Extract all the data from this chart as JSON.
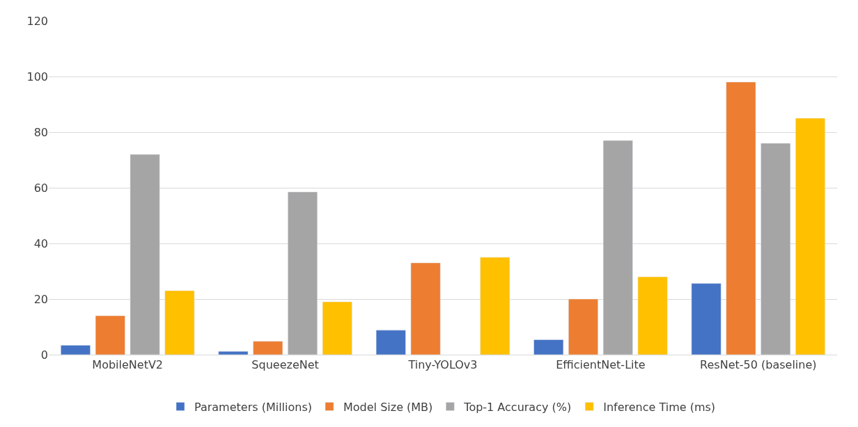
{
  "chart_data": {
    "type": "bar",
    "categories": [
      "MobileNetV2",
      "SqueezeNet",
      "Tiny-YOLOv3",
      "EfficientNet-Lite",
      "ResNet-50 (baseline)"
    ],
    "series": [
      {
        "name": "Parameters (Millions)",
        "color": "#4472c4",
        "values": [
          3.4,
          1.2,
          8.8,
          5.4,
          25.6
        ]
      },
      {
        "name": "Model Size (MB)",
        "color": "#ed7d31",
        "values": [
          14,
          4.8,
          33,
          20,
          98
        ]
      },
      {
        "name": "Top-1 Accuracy (%)",
        "color": "#a5a5a5",
        "values": [
          72,
          58.5,
          null,
          77,
          76
        ]
      },
      {
        "name": "Inference Time (ms)",
        "color": "#ffc000",
        "values": [
          23,
          19,
          35,
          28,
          85
        ]
      }
    ],
    "ylim": [
      0,
      120
    ],
    "yticks": [
      0,
      20,
      40,
      60,
      80,
      100,
      120
    ],
    "grid": "y",
    "legend": "bottom"
  }
}
